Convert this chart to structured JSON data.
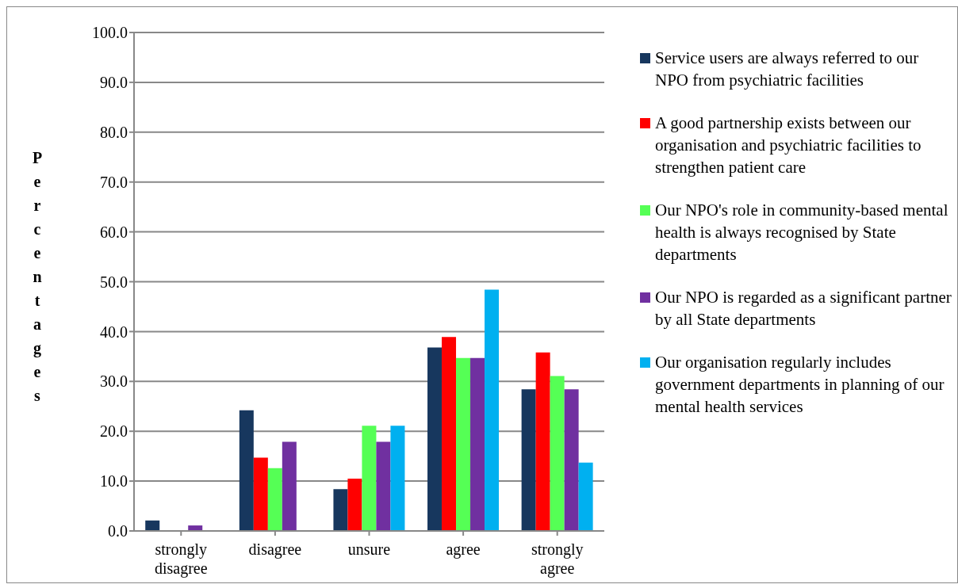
{
  "chart_data": {
    "type": "bar",
    "ylabel": "Percentages",
    "categories": [
      "strongly disagree",
      "disagree",
      "unsure",
      "agree",
      "strongly agree"
    ],
    "series": [
      {
        "name": "Service users are always referred to our NPO from psychiatric facilities",
        "color": "#17375e",
        "values": [
          2.1,
          24.2,
          8.4,
          36.8,
          28.4
        ]
      },
      {
        "name": "A good partnership exists between our organisation and psychiatric facilities to strengthen patient care",
        "color": "#ff0000",
        "values": [
          0,
          14.7,
          10.5,
          38.9,
          35.8
        ]
      },
      {
        "name": "Our NPO's role in community-based mental health is always recognised by State departments",
        "color": "#55ff55",
        "values": [
          0,
          12.6,
          21.1,
          34.7,
          31.1
        ]
      },
      {
        "name": "Our NPO is regarded as a significant partner by all State departments",
        "color": "#7030a0",
        "values": [
          1.1,
          17.9,
          17.9,
          34.7,
          28.4
        ]
      },
      {
        "name": "Our organisation regularly includes government departments in planning of our mental health services",
        "color": "#00b0f0",
        "values": [
          0,
          0,
          21.1,
          48.4,
          13.7
        ]
      }
    ],
    "ylim": [
      0,
      100
    ],
    "yticks": [
      {
        "value": 0,
        "label": "0.0"
      },
      {
        "value": 10,
        "label": "10.0"
      },
      {
        "value": 20,
        "label": "20.0"
      },
      {
        "value": 30,
        "label": "30.0"
      },
      {
        "value": 40,
        "label": "40.0"
      },
      {
        "value": 50,
        "label": "50.0"
      },
      {
        "value": 60,
        "label": "60.0"
      },
      {
        "value": 70,
        "label": "70.0"
      },
      {
        "value": 80,
        "label": "80.0"
      },
      {
        "value": 90,
        "label": "90.0"
      },
      {
        "value": 100,
        "label": "100.0"
      }
    ],
    "grid": "y",
    "legend": "right"
  }
}
